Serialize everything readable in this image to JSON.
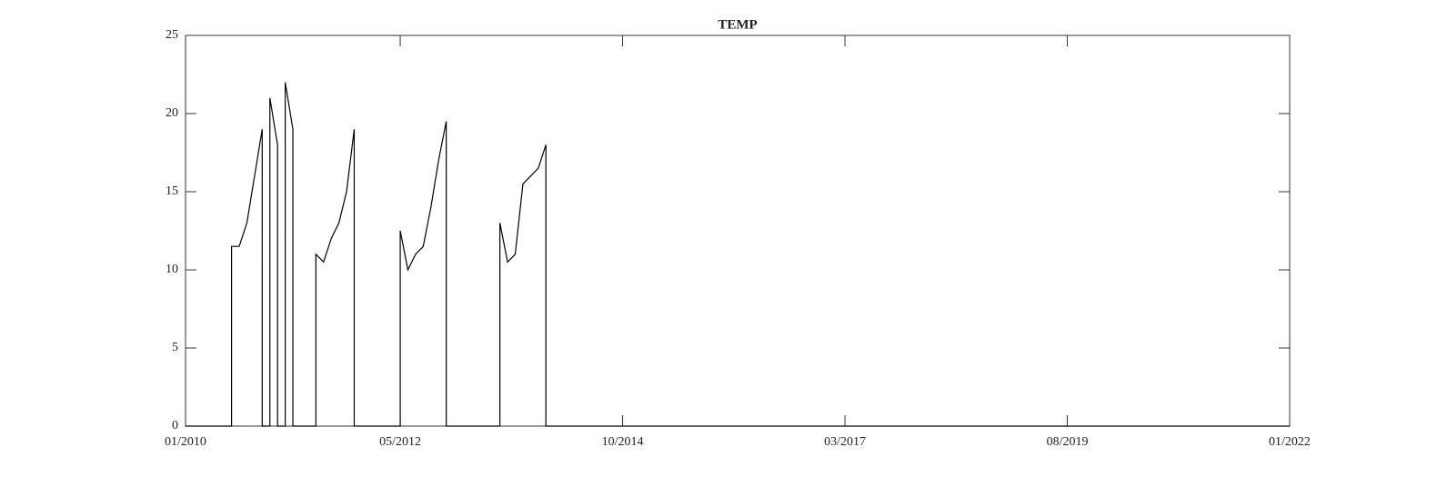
{
  "chart_data": {
    "type": "line",
    "title": "TEMP",
    "color": "#000000",
    "x": [
      "2010-01",
      "2010-07",
      "2010-07",
      "2010-08",
      "2010-09",
      "2010-10",
      "2010-11",
      "2010-11",
      "2010-12",
      "2010-12",
      "2011-01",
      "2011-01",
      "2011-02",
      "2011-02",
      "2011-03",
      "2011-03",
      "2011-06",
      "2011-06",
      "2011-07",
      "2011-08",
      "2011-09",
      "2011-10",
      "2011-11",
      "2011-11",
      "2012-05",
      "2012-05",
      "2012-06",
      "2012-07",
      "2012-08",
      "2012-09",
      "2012-10",
      "2012-11",
      "2012-11",
      "2013-06",
      "2013-06",
      "2013-07",
      "2013-08",
      "2013-09",
      "2013-10",
      "2013-11",
      "2013-12",
      "2013-12",
      "2022-01"
    ],
    "values": [
      0,
      0,
      11.5,
      11.5,
      13,
      16,
      19,
      0,
      0,
      21,
      18,
      0,
      0,
      22,
      19,
      0,
      0,
      11,
      10.5,
      12,
      13,
      15,
      19,
      0,
      0,
      12.5,
      10,
      11,
      11.5,
      14,
      17,
      19.5,
      0,
      0,
      13,
      10.5,
      11,
      15.5,
      16,
      16.5,
      18,
      0,
      0
    ],
    "xlim": [
      "2010-01",
      "2022-01"
    ],
    "xticks": [
      {
        "value": "2010-01",
        "label": "01/2010"
      },
      {
        "value": "2012-05",
        "label": "05/2012"
      },
      {
        "value": "2014-10",
        "label": "10/2014"
      },
      {
        "value": "2017-03",
        "label": "03/2017"
      },
      {
        "value": "2019-08",
        "label": "08/2019"
      },
      {
        "value": "2022-01",
        "label": "01/2022"
      }
    ],
    "ylim": [
      0,
      25
    ],
    "yticks": [
      0,
      5,
      10,
      15,
      20,
      25
    ],
    "grid": false
  }
}
